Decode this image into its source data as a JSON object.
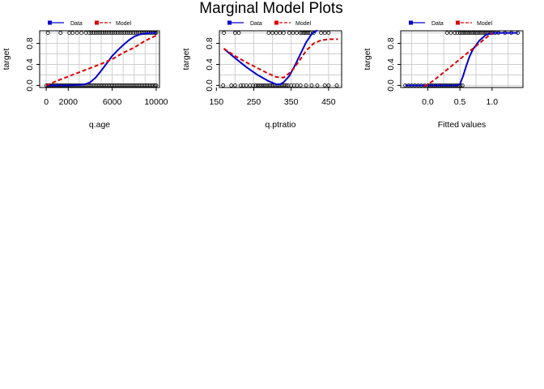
{
  "figure": {
    "title": "Marginal Model Plots"
  },
  "legend": {
    "data_label": "Data",
    "model_label": "Model"
  },
  "colors": {
    "data": "#0000cc",
    "model": "#dd0000",
    "grid": "#cfcfcf",
    "points": "#000000"
  },
  "chart_data": [
    {
      "type": "scatter",
      "xlabel": "q.age",
      "ylabel": "target",
      "xlim": [
        -600,
        10300
      ],
      "ylim": [
        -0.04,
        1.04
      ],
      "xticks": [
        "0",
        "2000",
        "6000",
        "10000"
      ],
      "xtick_values": [
        0,
        2000,
        6000,
        10000
      ],
      "yticks": [
        "0.0",
        "0.4",
        "0.8"
      ],
      "ytick_values": [
        0.0,
        0.4,
        0.8
      ],
      "points_y0": [
        0,
        150,
        300,
        450,
        600,
        750,
        900,
        1050,
        1200,
        1350,
        1500,
        1650,
        1800,
        1950,
        2100,
        2250,
        2400,
        2550,
        2700,
        2850,
        3000,
        3150,
        3300,
        3450,
        3600,
        3750,
        3900,
        4050,
        4200,
        4350,
        4500,
        4650,
        4800,
        4950,
        5100,
        5250,
        5400,
        5550,
        5700,
        5850,
        6000,
        6150,
        6300,
        6450,
        6600,
        6750,
        6900,
        7050,
        7200,
        7350,
        7500,
        7650,
        7800,
        7950,
        8100,
        8250,
        8400,
        8550,
        8700,
        8850,
        9000,
        9150,
        9300,
        9450,
        9600,
        9750,
        9900,
        10000
      ],
      "points_y1": [
        150,
        1300,
        2100,
        2400,
        2800,
        3200,
        3600,
        3900,
        4100,
        4300,
        4500,
        4700,
        4900,
        5100,
        5300,
        5500,
        5700,
        5900,
        6100,
        6300,
        6500,
        6700,
        6900,
        7100,
        7300,
        7500,
        7700,
        7900,
        8100,
        8300,
        8500,
        8700,
        8900,
        9100,
        9300,
        9500,
        9700,
        9900,
        10000
      ],
      "series": [
        {
          "name": "Data",
          "x": [
            0,
            1000,
            2000,
            3000,
            3500,
            4000,
            4500,
            5000,
            5500,
            6000,
            6500,
            7000,
            7500,
            8000,
            8500,
            9000,
            9500,
            10000
          ],
          "y": [
            0.0,
            0.0,
            0.0,
            0.01,
            0.02,
            0.06,
            0.15,
            0.28,
            0.42,
            0.56,
            0.67,
            0.77,
            0.86,
            0.93,
            0.97,
            0.99,
            1.0,
            1.0
          ]
        },
        {
          "name": "Model",
          "x": [
            0,
            1000,
            2000,
            3000,
            4000,
            5000,
            6000,
            7000,
            8000,
            9000,
            10000
          ],
          "y": [
            0.0,
            0.09,
            0.17,
            0.25,
            0.33,
            0.41,
            0.5,
            0.62,
            0.72,
            0.85,
            0.95
          ]
        }
      ]
    },
    {
      "type": "scatter",
      "xlabel": "q.ptratio",
      "ylabel": "target",
      "xlim": [
        158,
        485
      ],
      "ylim": [
        -0.04,
        1.04
      ],
      "xticks": [
        "150",
        "250",
        "350",
        "450"
      ],
      "xtick_values": [
        150,
        250,
        350,
        450
      ],
      "yticks": [
        "0.0",
        "0.4",
        "0.8"
      ],
      "ytick_values": [
        0.0,
        0.4,
        0.8
      ],
      "points_y0": [
        168,
        190,
        200,
        215,
        222,
        230,
        240,
        248,
        255,
        260,
        265,
        270,
        275,
        280,
        285,
        290,
        294,
        298,
        302,
        306,
        310,
        314,
        318,
        322,
        326,
        330,
        334,
        338,
        342,
        350,
        358,
        366,
        375,
        390,
        405,
        420,
        440,
        450,
        472
      ],
      "points_y1": [
        170,
        200,
        210,
        290,
        300,
        310,
        320,
        330,
        345,
        355,
        365,
        375,
        380,
        385,
        390,
        395,
        400,
        410,
        430,
        440,
        450
      ],
      "series": [
        {
          "name": "Data",
          "x": [
            170,
            200,
            230,
            260,
            290,
            310,
            320,
            330,
            345,
            360,
            375,
            390,
            405,
            420
          ],
          "y": [
            0.7,
            0.52,
            0.35,
            0.2,
            0.08,
            0.02,
            0.02,
            0.06,
            0.18,
            0.38,
            0.6,
            0.82,
            0.98,
            1.05
          ]
        },
        {
          "name": "Model",
          "x": [
            170,
            200,
            230,
            260,
            290,
            310,
            330,
            350,
            370,
            390,
            410,
            430,
            450,
            475
          ],
          "y": [
            0.7,
            0.56,
            0.44,
            0.33,
            0.22,
            0.16,
            0.15,
            0.26,
            0.45,
            0.66,
            0.8,
            0.86,
            0.88,
            0.88
          ]
        }
      ]
    },
    {
      "type": "scatter",
      "xlabel": "Fitted values",
      "ylabel": "target",
      "xlim": [
        -0.42,
        1.48
      ],
      "ylim": [
        -0.04,
        1.04
      ],
      "xticks": [
        "0.0",
        "0.5",
        "1.0"
      ],
      "xtick_values": [
        0.0,
        0.5,
        1.0
      ],
      "yticks": [
        "0.0",
        "0.4",
        "0.8"
      ],
      "ytick_values": [
        0.0,
        0.4,
        0.8
      ],
      "points_y0": [
        -0.35,
        -0.3,
        -0.25,
        -0.2,
        -0.15,
        -0.1,
        -0.05,
        0.0,
        0.03,
        0.06,
        0.09,
        0.12,
        0.15,
        0.18,
        0.21,
        0.24,
        0.27,
        0.3,
        0.33,
        0.36,
        0.39,
        0.42,
        0.45,
        0.48,
        0.51,
        0.54
      ],
      "points_y1": [
        0.3,
        0.36,
        0.42,
        0.46,
        0.5,
        0.53,
        0.56,
        0.59,
        0.62,
        0.65,
        0.68,
        0.71,
        0.74,
        0.77,
        0.8,
        0.83,
        0.86,
        0.89,
        0.92,
        0.95,
        0.98,
        1.01,
        1.05,
        1.1,
        1.2,
        1.3,
        1.4
      ],
      "series": [
        {
          "name": "Data",
          "x": [
            -0.35,
            0.0,
            0.3,
            0.45,
            0.5,
            0.55,
            0.6,
            0.65,
            0.7,
            0.8,
            0.9,
            1.0,
            1.2,
            1.4
          ],
          "y": [
            0.0,
            0.0,
            0.0,
            0.0,
            0.02,
            0.18,
            0.38,
            0.55,
            0.68,
            0.85,
            0.96,
            1.0,
            1.0,
            1.0
          ]
        },
        {
          "name": "Model",
          "x": [
            -0.05,
            0.0,
            0.1,
            0.2,
            0.3,
            0.4,
            0.5,
            0.6,
            0.7,
            0.8,
            0.9,
            1.0
          ],
          "y": [
            -0.02,
            0.02,
            0.1,
            0.2,
            0.3,
            0.4,
            0.5,
            0.6,
            0.7,
            0.8,
            0.9,
            1.0
          ]
        }
      ]
    }
  ]
}
